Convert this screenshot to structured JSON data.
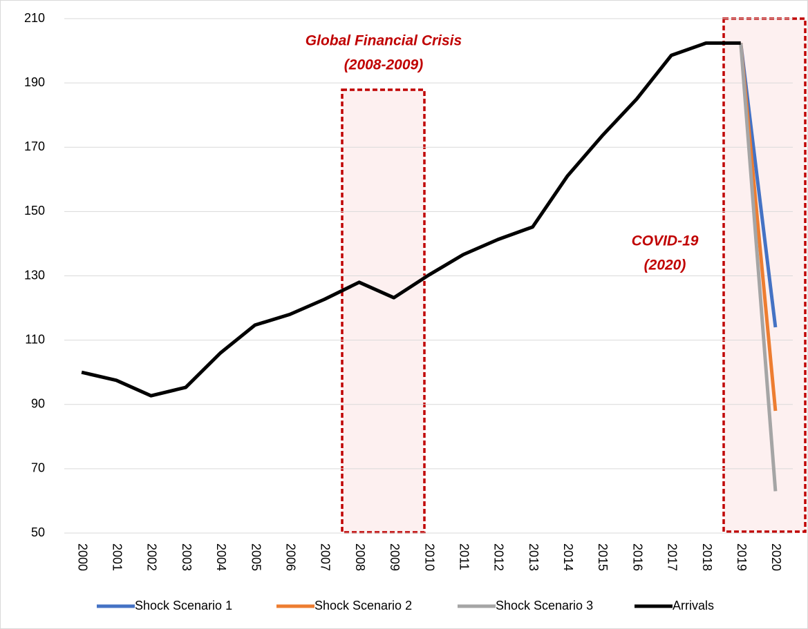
{
  "chart_data": {
    "type": "line",
    "categories": [
      "2000",
      "2001",
      "2002",
      "2003",
      "2004",
      "2005",
      "2006",
      "2007",
      "2008",
      "2009",
      "2010",
      "2011",
      "2012",
      "2013",
      "2014",
      "2015",
      "2016",
      "2017",
      "2018",
      "2019",
      "2020"
    ],
    "series": [
      {
        "name": "Shock Scenario 1",
        "color": "#4472c4",
        "values": [
          null,
          null,
          null,
          null,
          null,
          null,
          null,
          null,
          null,
          null,
          null,
          null,
          null,
          null,
          null,
          null,
          null,
          null,
          null,
          202.4,
          114
        ]
      },
      {
        "name": "Shock Scenario 2",
        "color": "#ed7d31",
        "values": [
          null,
          null,
          null,
          null,
          null,
          null,
          null,
          null,
          null,
          null,
          null,
          null,
          null,
          null,
          null,
          null,
          null,
          null,
          null,
          202.4,
          88
        ]
      },
      {
        "name": "Shock Scenario 3",
        "color": "#a5a5a5",
        "values": [
          null,
          null,
          null,
          null,
          null,
          null,
          null,
          null,
          null,
          null,
          null,
          null,
          null,
          null,
          null,
          null,
          null,
          null,
          null,
          202.4,
          63
        ]
      },
      {
        "name": "Arrivals",
        "color": "#000000",
        "values": [
          100,
          97.5,
          92.7,
          95.3,
          106,
          114.7,
          118,
          122.7,
          128,
          123.2,
          130.2,
          136.6,
          141.3,
          145.2,
          161,
          173.5,
          185,
          198.6,
          202.4,
          202.4,
          null
        ]
      }
    ],
    "ylim": [
      50,
      210
    ],
    "yticks": [
      50,
      70,
      90,
      110,
      130,
      150,
      170,
      190,
      210
    ],
    "grid": true,
    "legend": "bottom",
    "annotations": [
      "Global Financial Crisis",
      "(2008-2009)",
      "COVID-19",
      "(2020)"
    ]
  }
}
